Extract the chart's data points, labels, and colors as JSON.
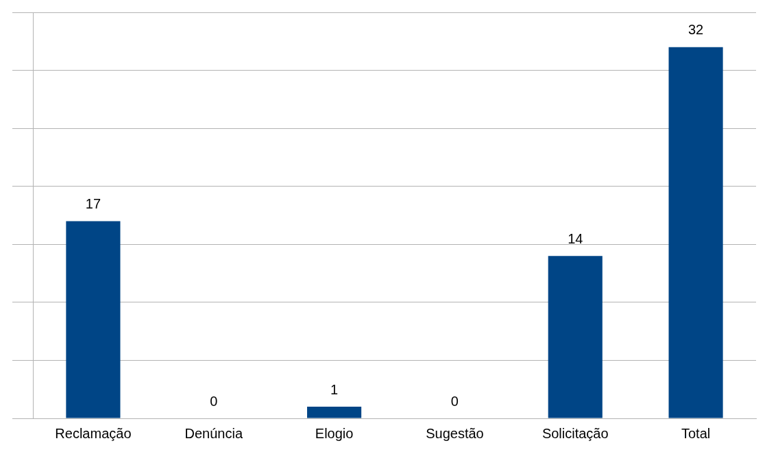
{
  "chart_data": {
    "type": "bar",
    "categories": [
      "Reclamação",
      "Denúncia",
      "Elogio",
      "Sugestão",
      "Solicitação",
      "Total"
    ],
    "values": [
      17,
      0,
      1,
      0,
      14,
      32
    ],
    "color": "#004586",
    "data_labels": true,
    "grid": "y",
    "tick_labels": "x",
    "legend": false,
    "ylim": [
      0,
      35
    ],
    "yticks": [
      {
        "value": 0,
        "label": null
      },
      {
        "value": 5,
        "label": null
      },
      {
        "value": 10,
        "label": null
      },
      {
        "value": 15,
        "label": null
      },
      {
        "value": 20,
        "label": null
      },
      {
        "value": 25,
        "label": null
      },
      {
        "value": 30,
        "label": null
      },
      {
        "value": 35,
        "label": null
      }
    ]
  }
}
